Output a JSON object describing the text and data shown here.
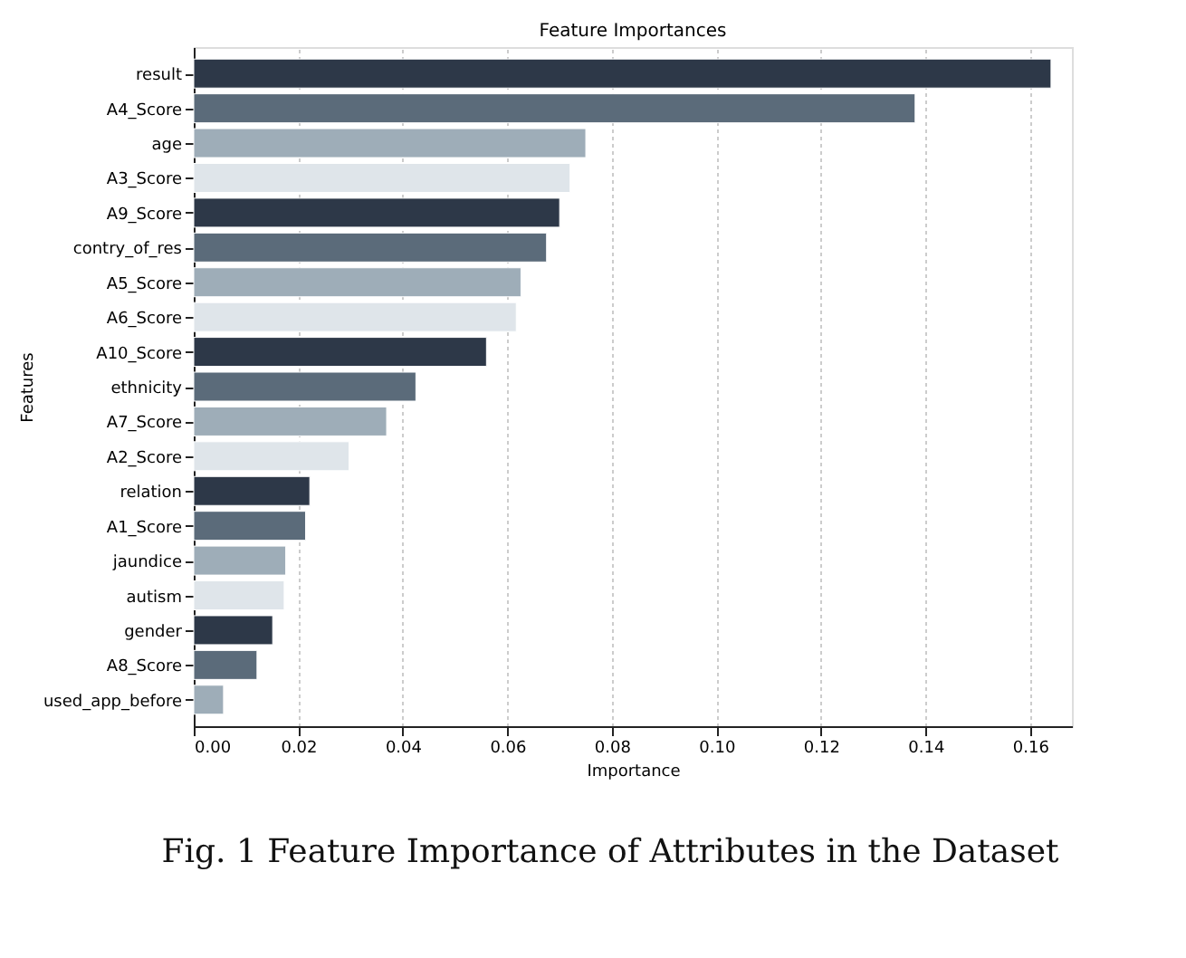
{
  "chart_data": {
    "type": "bar",
    "orientation": "horizontal",
    "title": "Feature Importances",
    "xlabel": "Importance",
    "ylabel": "Features",
    "categories": [
      "result",
      "A4_Score",
      "age",
      "A3_Score",
      "A9_Score",
      "contry_of_res",
      "A5_Score",
      "A6_Score",
      "A10_Score",
      "ethnicity",
      "A7_Score",
      "A2_Score",
      "relation",
      "A1_Score",
      "jaundice",
      "autism",
      "gender",
      "A8_Score",
      "used_app_before"
    ],
    "values": [
      0.164,
      0.138,
      0.075,
      0.072,
      0.07,
      0.0675,
      0.0626,
      0.0617,
      0.056,
      0.0425,
      0.0369,
      0.0297,
      0.0222,
      0.0214,
      0.0176,
      0.0173,
      0.0151,
      0.0121,
      0.0057
    ],
    "colors": [
      "#2d3848",
      "#5b6b7a",
      "#9eadb8",
      "#dfe5ea",
      "#2d3848",
      "#5b6b7a",
      "#9eadb8",
      "#dfe5ea",
      "#2d3848",
      "#5b6b7a",
      "#9eadb8",
      "#dfe5ea",
      "#2d3848",
      "#5b6b7a",
      "#9eadb8",
      "#dfe5ea",
      "#2d3848",
      "#5b6b7a",
      "#9eadb8"
    ],
    "xlim": [
      0,
      0.168
    ],
    "xticks": [
      {
        "value": 0,
        "label": "0.00"
      },
      {
        "value": 0.02,
        "label": "0.02"
      },
      {
        "value": 0.04,
        "label": "0.04"
      },
      {
        "value": 0.06,
        "label": "0.06"
      },
      {
        "value": 0.08,
        "label": "0.08"
      },
      {
        "value": 0.1,
        "label": "0.10"
      },
      {
        "value": 0.12,
        "label": "0.12"
      },
      {
        "value": 0.14,
        "label": "0.14"
      },
      {
        "value": 0.16,
        "label": "0.16"
      }
    ],
    "grid": "x",
    "annotations": [
      "Fig. 1 Feature Importance of Attributes in the Dataset"
    ]
  }
}
